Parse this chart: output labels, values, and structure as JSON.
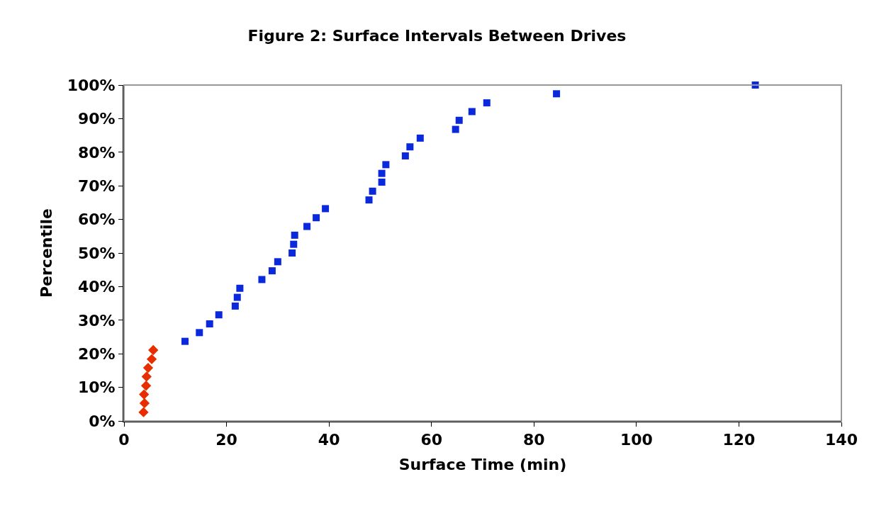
{
  "chart_data": {
    "type": "scatter",
    "title": "Figure 2: Surface Intervals Between Drives",
    "xlabel": "Surface Time (min)",
    "ylabel": "Percentile",
    "xlim": [
      0,
      140
    ],
    "xticks": [
      0,
      20,
      40,
      60,
      80,
      100,
      120,
      140
    ],
    "ylim": [
      0,
      100
    ],
    "yticks": [
      {
        "value": 0,
        "label": "0%"
      },
      {
        "value": 10,
        "label": "10%"
      },
      {
        "value": 20,
        "label": "20%"
      },
      {
        "value": 30,
        "label": "30%"
      },
      {
        "value": 40,
        "label": "40%"
      },
      {
        "value": 50,
        "label": "50%"
      },
      {
        "value": 60,
        "label": "60%"
      },
      {
        "value": 70,
        "label": "70%"
      },
      {
        "value": 80,
        "label": "80%"
      },
      {
        "value": 90,
        "label": "90%"
      },
      {
        "value": 100,
        "label": "100%"
      }
    ],
    "series": [
      {
        "color": "#e62e00",
        "marker": "diamond",
        "x": [
          3.8,
          4.0,
          3.9,
          4.3,
          4.4,
          4.7,
          5.4,
          5.7
        ],
        "values": [
          2.6,
          5.3,
          7.9,
          10.5,
          13.2,
          15.8,
          18.4,
          21.1
        ]
      },
      {
        "color": "#0a28dc",
        "marker": "square",
        "x": [
          11.9,
          14.7,
          16.7,
          18.5,
          21.7,
          22.1,
          22.6,
          26.9,
          28.9,
          30.0,
          32.8,
          33.1,
          33.3,
          35.7,
          37.5,
          39.3,
          47.8,
          48.5,
          50.3,
          50.3,
          51.1,
          54.9,
          55.8,
          57.8,
          64.7,
          65.4,
          67.9,
          70.8,
          84.4,
          123.2
        ],
        "values": [
          23.7,
          26.3,
          28.9,
          31.6,
          34.2,
          36.8,
          39.5,
          42.1,
          44.7,
          47.4,
          50.0,
          52.6,
          55.3,
          57.9,
          60.5,
          63.2,
          65.8,
          68.4,
          71.1,
          73.7,
          76.3,
          78.9,
          81.6,
          84.2,
          86.8,
          89.5,
          92.1,
          94.7,
          97.4,
          100
        ]
      }
    ]
  }
}
